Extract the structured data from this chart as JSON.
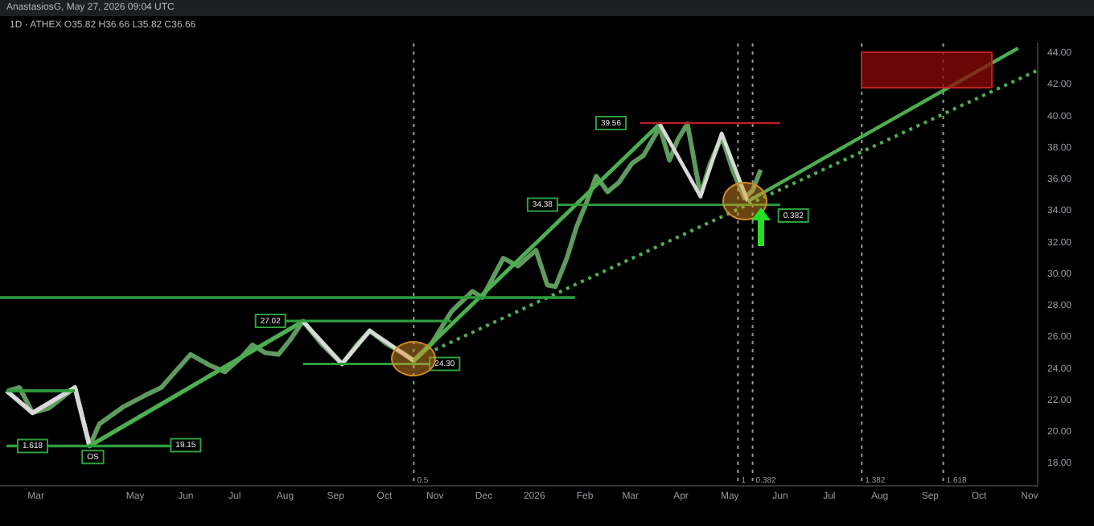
{
  "chart_data": {
    "type": "line",
    "title": "1D · ATHEX O35.82 H36.66 L35.82 C36.66",
    "annotations": [
      "AnastasiosG, May 27, 2026 09:04 UTC",
      {
        "text": "27.02",
        "x": "2025-07-23",
        "y": 27.02
      },
      {
        "text": "24.30",
        "x": "2025-11-07",
        "y": 24.3
      },
      {
        "text": "34.38",
        "x": "2026-01-06",
        "y": 34.38
      },
      {
        "text": "39.56",
        "x": "2026-02-17",
        "y": 39.56
      },
      {
        "text": "19.15",
        "x": "2025-06-01",
        "y": 19.15
      },
      {
        "text": "1.618",
        "x": "2025-02-27",
        "y": 19.1
      },
      {
        "text": "OS",
        "x": "2025-04-05",
        "y": 18.4
      },
      {
        "text": "0.382",
        "x": "2026-06-09",
        "y": 33.7
      }
    ],
    "series": [
      {
        "color": "#5f9a5f",
        "x": [
          "2025-02-12",
          "2025-02-19",
          "2025-02-27",
          "2025-03-09",
          "2025-03-25",
          "2025-04-03",
          "2025-04-09",
          "2025-04-24",
          "2025-05-07",
          "2025-05-17",
          "2025-06-04",
          "2025-06-16",
          "2025-06-25",
          "2025-07-05",
          "2025-07-12",
          "2025-07-20",
          "2025-07-28",
          "2025-08-04",
          "2025-08-12",
          "2025-08-24",
          "2025-09-05",
          "2025-09-14",
          "2025-09-22",
          "2025-10-02",
          "2025-10-12",
          "2025-10-19",
          "2025-10-30",
          "2025-11-11",
          "2025-11-24",
          "2025-11-30",
          "2025-12-13",
          "2025-12-22",
          "2026-01-02",
          "2026-01-09",
          "2026-01-14",
          "2026-01-21",
          "2026-01-27",
          "2026-02-02",
          "2026-02-08",
          "2026-02-15",
          "2026-02-22",
          "2026-03-02",
          "2026-03-09",
          "2026-03-19",
          "2026-03-25",
          "2026-03-30",
          "2026-04-05",
          "2026-04-13",
          "2026-04-19",
          "2026-04-26",
          "2026-05-03",
          "2026-05-10",
          "2026-05-15",
          "2026-05-20"
        ],
        "values": [
          22.6,
          22.8,
          21.2,
          21.5,
          22.8,
          19.1,
          20.5,
          21.6,
          22.3,
          22.8,
          24.9,
          24.2,
          23.8,
          24.7,
          25.5,
          25.0,
          24.9,
          25.8,
          27.0,
          25.5,
          24.3,
          25.5,
          26.4,
          25.6,
          25.0,
          24.5,
          25.6,
          27.6,
          28.9,
          28.5,
          31.0,
          30.5,
          31.5,
          29.3,
          29.2,
          31.0,
          33.0,
          34.5,
          36.2,
          35.2,
          35.8,
          37.0,
          37.5,
          39.3,
          37.2,
          38.5,
          39.5,
          35.0,
          37.0,
          38.7,
          36.5,
          34.8,
          35.3,
          36.6
        ]
      },
      {
        "color": "#d8d8d8",
        "x": [
          "2025-02-11",
          "2025-02-27",
          "2025-03-25",
          "2025-04-03"
        ],
        "values": [
          22.6,
          21.2,
          22.8,
          19.1
        ]
      },
      {
        "color": "#4caf50",
        "x": [
          "2025-04-03",
          "2025-08-12"
        ],
        "values": [
          19.1,
          27.0
        ]
      },
      {
        "color": "#d8d8d8",
        "x": [
          "2025-08-12",
          "2025-09-05",
          "2025-09-22",
          "2025-10-19"
        ],
        "values": [
          27.0,
          24.3,
          26.4,
          24.5
        ]
      },
      {
        "color": "#4caf50",
        "x": [
          "2025-10-19",
          "2026-03-19"
        ],
        "values": [
          24.5,
          39.5
        ]
      },
      {
        "color": "#d8d8d8",
        "x": [
          "2026-03-19",
          "2026-04-13",
          "2026-04-26",
          "2026-05-12"
        ],
        "values": [
          39.5,
          34.9,
          38.9,
          34.6
        ]
      },
      {
        "color": "#4caf50",
        "x": [
          "2026-05-12",
          "2026-10-25"
        ],
        "values": [
          34.6,
          44.3
        ]
      },
      {
        "color": "#4caf50",
        "line_style": "dotted",
        "x": [
          "2025-11-01",
          "2026-11-06"
        ],
        "values": [
          25.2,
          42.9
        ]
      },
      {
        "color": "#2e9e3e",
        "x": [
          "2025-02-11",
          "2025-03-25"
        ],
        "values": [
          22.6,
          22.6
        ]
      },
      {
        "color": "#2e9e3e",
        "x": [
          "2025-02-11",
          "2025-06-08"
        ],
        "values": [
          19.1,
          19.1
        ]
      },
      {
        "color": "#2e9e3e",
        "x": [
          "2025-02-07",
          "2026-01-26"
        ],
        "values": [
          28.5,
          28.5
        ]
      },
      {
        "color": "#2e9e3e",
        "x": [
          "2025-07-17",
          "2025-11-11"
        ],
        "values": [
          27.02,
          27.02
        ]
      },
      {
        "color": "#2e9e3e",
        "x": [
          "2025-08-12",
          "2025-11-11"
        ],
        "values": [
          24.3,
          24.3
        ]
      },
      {
        "color": "#2e9e3e",
        "x": [
          "2025-12-31",
          "2026-06-01"
        ],
        "values": [
          34.38,
          34.38
        ]
      },
      {
        "color": "#b22222",
        "x": [
          "2026-03-07",
          "2026-06-01"
        ],
        "values": [
          39.56,
          39.56
        ]
      }
    ],
    "ref_lines": [
      {
        "axis": "x",
        "value": "2025-10-19",
        "label": "0.5",
        "color": "#9598a1",
        "line_style": "dotted"
      },
      {
        "axis": "x",
        "value": "2026-05-06",
        "label": "1",
        "color": "#9598a1",
        "line_style": "dotted"
      },
      {
        "axis": "x",
        "value": "2026-05-15",
        "label": "0.382",
        "color": "#9598a1",
        "line_style": "dotted"
      },
      {
        "axis": "x",
        "value": "2026-07-21",
        "label": "1.382",
        "color": "#9598a1",
        "line_style": "dotted"
      },
      {
        "axis": "x",
        "value": "2026-09-09",
        "label": "1.618",
        "color": "#9598a1",
        "line_style": "dotted"
      }
    ],
    "xlim": [
      "2025-02-07",
      "2026-11-06"
    ],
    "xticks": [
      {
        "value": "2025-03-01",
        "label": "Mar"
      },
      {
        "value": "2025-05-01",
        "label": "May"
      },
      {
        "value": "2025-06-01",
        "label": "Jun"
      },
      {
        "value": "2025-07-01",
        "label": "Jul"
      },
      {
        "value": "2025-08-01",
        "label": "Aug"
      },
      {
        "value": "2025-09-01",
        "label": "Sep"
      },
      {
        "value": "2025-10-01",
        "label": "Oct"
      },
      {
        "value": "2025-11-01",
        "label": "Nov"
      },
      {
        "value": "2025-12-01",
        "label": "Dec"
      },
      {
        "value": "2026-01-01",
        "label": "2026"
      },
      {
        "value": "2026-02-01",
        "label": "Feb"
      },
      {
        "value": "2026-03-01",
        "label": "Mar"
      },
      {
        "value": "2026-04-01",
        "label": "Apr"
      },
      {
        "value": "2026-05-01",
        "label": "May"
      },
      {
        "value": "2026-06-01",
        "label": "Jun"
      },
      {
        "value": "2026-07-01",
        "label": "Jul"
      },
      {
        "value": "2026-08-01",
        "label": "Aug"
      },
      {
        "value": "2026-09-01",
        "label": "Sep"
      },
      {
        "value": "2026-10-01",
        "label": "Oct"
      },
      {
        "value": "2026-11-01",
        "label": "Nov"
      }
    ],
    "ylim": [
      16.6,
      44.6
    ],
    "yticks": [
      {
        "value": 18,
        "label": "18.00"
      },
      {
        "value": 20,
        "label": "20.00"
      },
      {
        "value": 22,
        "label": "22.00"
      },
      {
        "value": 24,
        "label": "24.00"
      },
      {
        "value": 26,
        "label": "26.00"
      },
      {
        "value": 28,
        "label": "28.00"
      },
      {
        "value": 30,
        "label": "30.00"
      },
      {
        "value": 32,
        "label": "32.00"
      },
      {
        "value": 34,
        "label": "34.00"
      },
      {
        "value": 36,
        "label": "36.00"
      },
      {
        "value": 38,
        "label": "38.00"
      },
      {
        "value": 40,
        "label": "40.00"
      },
      {
        "value": 42,
        "label": "42.00"
      },
      {
        "value": 44,
        "label": "44.00"
      }
    ]
  }
}
